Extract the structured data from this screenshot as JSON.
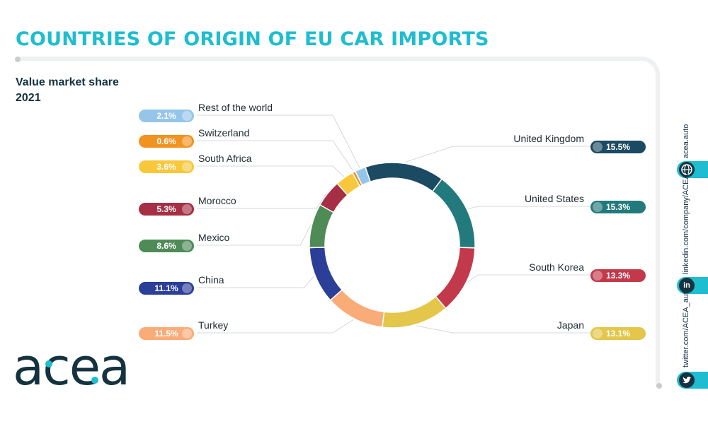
{
  "header": {
    "title": "COUNTRIES OF ORIGIN OF EU CAR IMPORTS",
    "subtitle_line1": "Value market share",
    "subtitle_line2": "2021"
  },
  "chart_data": {
    "type": "pie",
    "donut": true,
    "unit": "%",
    "slices": [
      {
        "label": "United Kingdom",
        "value": 15.5,
        "display": "15.5%",
        "color": "#1b4a63"
      },
      {
        "label": "United States",
        "value": 15.3,
        "display": "15.3%",
        "color": "#237a7c"
      },
      {
        "label": "South Korea",
        "value": 13.3,
        "display": "13.3%",
        "color": "#c2394b"
      },
      {
        "label": "Japan",
        "value": 13.1,
        "display": "13.1%",
        "color": "#e3c64a"
      },
      {
        "label": "Turkey",
        "value": 11.5,
        "display": "11.5%",
        "color": "#f9ab78"
      },
      {
        "label": "China",
        "value": 11.1,
        "display": "11.1%",
        "color": "#2b3e98"
      },
      {
        "label": "Mexico",
        "value": 8.6,
        "display": "8.6%",
        "color": "#4e8b57"
      },
      {
        "label": "Morocco",
        "value": 5.3,
        "display": "5.3%",
        "color": "#a62f45"
      },
      {
        "label": "South Africa",
        "value": 3.6,
        "display": "3.6%",
        "color": "#f8c73a"
      },
      {
        "label": "Switzerland",
        "value": 0.6,
        "display": "0.6%",
        "color": "#f29221"
      },
      {
        "label": "Rest of the world",
        "value": 2.1,
        "display": "2.1%",
        "color": "#95c6ea"
      }
    ]
  },
  "logo": {
    "text": "acea"
  },
  "sidebar": {
    "website": "acea.auto",
    "linkedin": "linkedin.com/company/ACEA/",
    "twitter": "twitter.com/ACEA_auto",
    "globe_icon": "globe-icon",
    "linkedin_icon": "linkedin-icon",
    "linkedin_glyph": "in",
    "twitter_icon": "twitter-bird-icon",
    "accent_color": "#1ebdd0",
    "dark_color": "#14323f"
  }
}
